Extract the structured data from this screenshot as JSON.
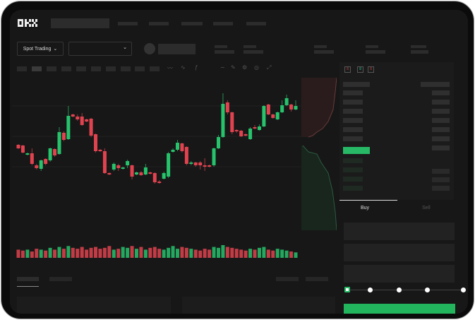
{
  "header": {
    "logo": "OKX"
  },
  "market": {
    "mode_label": "Spot Trading",
    "pair_value": ""
  },
  "trade": {
    "buy_label": "Buy",
    "sell_label": "Sell",
    "leverage_steps": 5,
    "selected_step": 0
  },
  "colors": {
    "up": "#27c26c",
    "down": "#e0434f",
    "accent": "#22b55e",
    "background": "#171717"
  },
  "chart_data": {
    "type": "candlestick",
    "series": [
      [
        97,
        92,
        98,
        91
      ],
      [
        96,
        86,
        97,
        85
      ],
      [
        83,
        85,
        86,
        82
      ],
      [
        85,
        70,
        92,
        68
      ],
      [
        68,
        64,
        70,
        62
      ],
      [
        63,
        75,
        76,
        60
      ],
      [
        77,
        70,
        78,
        68
      ],
      [
        75,
        92,
        93,
        73
      ],
      [
        91,
        82,
        92,
        80
      ],
      [
        84,
        115,
        122,
        83
      ],
      [
        114,
        104,
        116,
        102
      ],
      [
        105,
        138,
        152,
        104
      ],
      [
        140,
        137,
        141,
        136
      ],
      [
        137,
        133,
        140,
        131
      ],
      [
        137,
        125,
        142,
        124
      ],
      [
        133,
        130,
        134,
        129
      ],
      [
        134,
        110,
        135,
        108
      ],
      [
        112,
        88,
        113,
        86
      ],
      [
        90,
        88,
        91,
        87
      ],
      [
        88,
        57,
        92,
        56
      ],
      [
        57,
        55,
        58,
        54
      ],
      [
        62,
        70,
        72,
        60
      ],
      [
        68,
        64,
        70,
        60
      ],
      [
        63,
        65,
        66,
        62
      ],
      [
        68,
        74,
        76,
        64
      ],
      [
        68,
        52,
        69,
        48
      ],
      [
        55,
        58,
        59,
        54
      ],
      [
        58,
        54,
        60,
        53
      ],
      [
        55,
        65,
        70,
        54
      ],
      [
        58,
        56,
        59,
        55
      ],
      [
        57,
        44,
        58,
        42
      ],
      [
        45,
        43,
        47,
        42
      ],
      [
        49,
        57,
        59,
        48
      ],
      [
        52,
        85,
        87,
        50
      ],
      [
        87,
        90,
        92,
        86
      ],
      [
        90,
        100,
        104,
        88
      ],
      [
        99,
        88,
        100,
        86
      ],
      [
        94,
        70,
        95,
        68
      ],
      [
        70,
        72,
        74,
        68
      ],
      [
        72,
        68,
        73,
        66
      ],
      [
        72,
        68,
        74,
        62
      ],
      [
        68,
        66,
        78,
        60
      ],
      [
        68,
        66,
        69,
        65
      ],
      [
        68,
        92,
        93,
        66
      ],
      [
        92,
        108,
        111,
        91
      ],
      [
        108,
        155,
        170,
        107
      ],
      [
        157,
        143,
        160,
        140
      ],
      [
        143,
        115,
        144,
        112
      ],
      [
        118,
        116,
        119,
        114
      ],
      [
        117,
        109,
        118,
        108
      ],
      [
        112,
        110,
        113,
        109
      ],
      [
        105,
        120,
        122,
        104
      ],
      [
        122,
        120,
        125,
        119
      ],
      [
        118,
        123,
        126,
        117
      ],
      [
        123,
        152,
        153,
        122
      ],
      [
        154,
        140,
        155,
        139
      ],
      [
        140,
        135,
        141,
        134
      ],
      [
        133,
        143,
        144,
        132
      ],
      [
        143,
        153,
        160,
        142
      ],
      [
        153,
        163,
        168,
        152
      ],
      [
        154,
        147,
        155,
        144
      ],
      [
        147,
        152,
        160,
        146
      ]
    ],
    "volume": [
      9,
      8,
      9,
      7,
      10,
      9,
      8,
      11,
      9,
      12,
      10,
      13,
      11,
      10,
      12,
      9,
      11,
      12,
      10,
      11,
      13,
      9,
      10,
      12,
      11,
      13,
      10,
      12,
      9,
      11,
      12,
      10,
      9,
      11,
      13,
      10,
      12,
      11,
      10,
      9,
      8,
      10,
      9,
      12,
      11,
      14,
      12,
      11,
      10,
      9,
      8,
      10,
      9,
      11,
      12,
      9,
      8,
      10,
      9,
      8,
      7,
      6
    ]
  }
}
